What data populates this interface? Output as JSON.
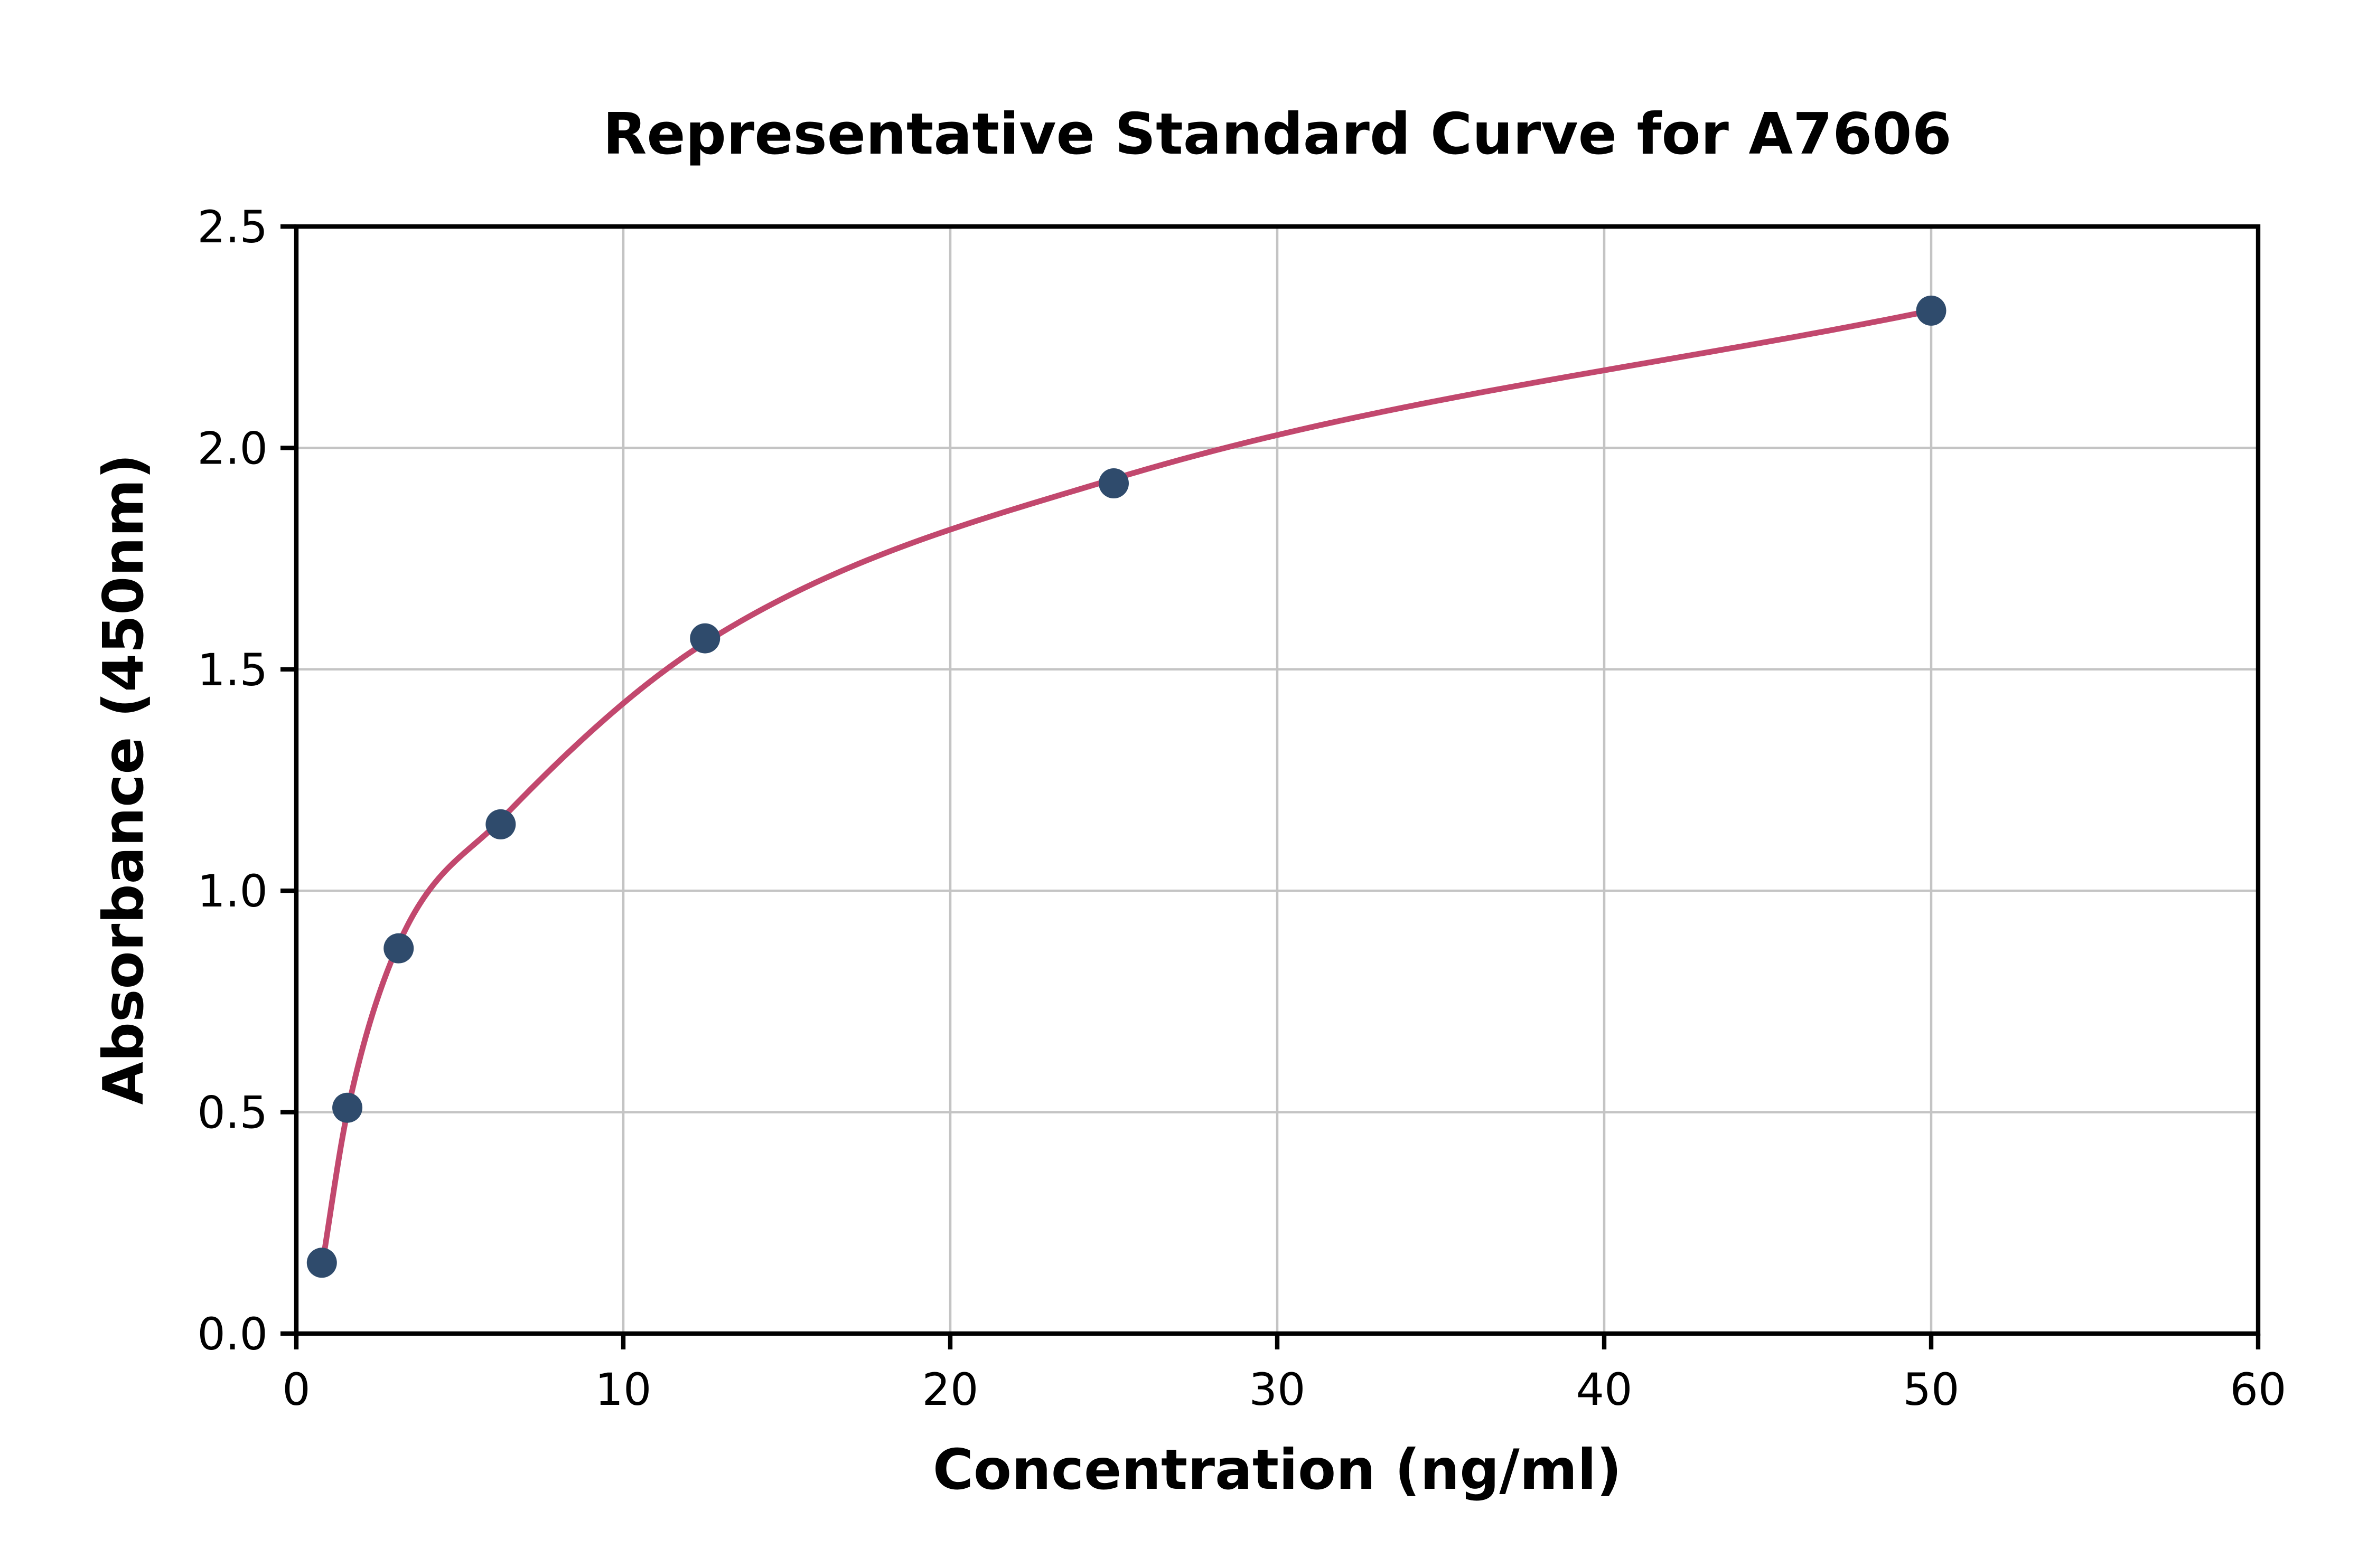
{
  "figure": {
    "background": "#ffffff"
  },
  "chart_data": {
    "type": "scatter",
    "title": "Representative Standard Curve for A7606",
    "xlabel": "Concentration (ng/ml)",
    "ylabel": "Absorbance (450nm)",
    "xlim": [
      0,
      60
    ],
    "ylim": [
      0,
      2.5
    ],
    "xticks": [
      0,
      10,
      20,
      30,
      40,
      50,
      60
    ],
    "xtick_labels": [
      "0",
      "10",
      "20",
      "30",
      "40",
      "50",
      "60"
    ],
    "yticks": [
      0,
      0.5,
      1.0,
      1.5,
      2.0,
      2.5
    ],
    "ytick_labels": [
      "0.0",
      "0.5",
      "1.0",
      "1.5",
      "2.0",
      "2.5"
    ],
    "grid": true,
    "legend_position": "none",
    "series": [
      {
        "name": "standard-points",
        "type": "scatter",
        "marker": "circle",
        "color": "#2f4b6c",
        "x": [
          0.78,
          1.56,
          3.13,
          6.25,
          12.5,
          25,
          50
        ],
        "y": [
          0.16,
          0.51,
          0.87,
          1.15,
          1.57,
          1.92,
          2.31
        ]
      },
      {
        "name": "fit-curve",
        "type": "line",
        "color": "#c2486e",
        "x": [
          0.78,
          1.56,
          3.13,
          6.25,
          12.5,
          25,
          50
        ],
        "y": [
          0.15,
          0.5,
          0.88,
          1.16,
          1.56,
          1.93,
          2.31
        ]
      }
    ],
    "style": {
      "grid_color": "#c4c4c4",
      "axis_color": "#000000",
      "text_color": "#000000",
      "background": "#ffffff"
    }
  }
}
